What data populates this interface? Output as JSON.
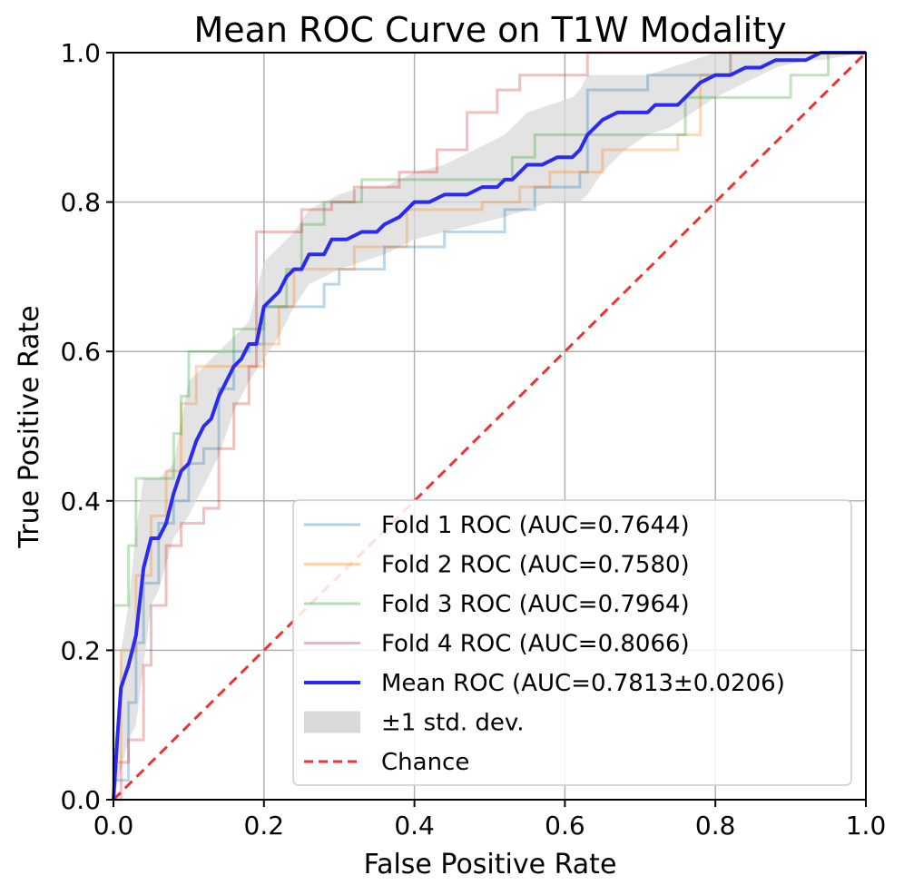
{
  "chart_data": {
    "type": "line",
    "title": "Mean ROC Curve on T1W Modality",
    "xlabel": "False Positive Rate",
    "ylabel": "True Positive Rate",
    "xlim": [
      0,
      1
    ],
    "ylim": [
      0,
      1
    ],
    "grid": true,
    "legend_position": "bottom-right",
    "x_ticks": [
      "0.0",
      "0.2",
      "0.4",
      "0.6",
      "0.8",
      "1.0"
    ],
    "y_ticks": [
      "0.0",
      "0.2",
      "0.4",
      "0.6",
      "0.8",
      "1.0"
    ],
    "colors": {
      "fold1": "#1f77b4",
      "fold2": "#ff7f0e",
      "fold3": "#2ca02c",
      "fold4": "#d62728",
      "mean": "#2a2af0",
      "std_band": "#d9d9d9",
      "chance": "#f03232",
      "grid": "#b0b0b0"
    },
    "series": [
      {
        "name": "Fold 1 ROC (AUC=0.7644)",
        "auc": 0.7644,
        "points": [
          [
            0,
            0
          ],
          [
            0,
            0.026
          ],
          [
            0.02,
            0.026
          ],
          [
            0.02,
            0.13
          ],
          [
            0.03,
            0.13
          ],
          [
            0.03,
            0.21
          ],
          [
            0.04,
            0.21
          ],
          [
            0.04,
            0.29
          ],
          [
            0.06,
            0.29
          ],
          [
            0.06,
            0.37
          ],
          [
            0.08,
            0.37
          ],
          [
            0.08,
            0.4
          ],
          [
            0.1,
            0.4
          ],
          [
            0.1,
            0.45
          ],
          [
            0.12,
            0.45
          ],
          [
            0.12,
            0.47
          ],
          [
            0.14,
            0.47
          ],
          [
            0.14,
            0.55
          ],
          [
            0.16,
            0.55
          ],
          [
            0.16,
            0.6
          ],
          [
            0.18,
            0.6
          ],
          [
            0.18,
            0.61
          ],
          [
            0.2,
            0.61
          ],
          [
            0.2,
            0.66
          ],
          [
            0.28,
            0.66
          ],
          [
            0.28,
            0.69
          ],
          [
            0.3,
            0.69
          ],
          [
            0.3,
            0.71
          ],
          [
            0.36,
            0.71
          ],
          [
            0.36,
            0.74
          ],
          [
            0.44,
            0.74
          ],
          [
            0.44,
            0.76
          ],
          [
            0.52,
            0.76
          ],
          [
            0.52,
            0.79
          ],
          [
            0.56,
            0.79
          ],
          [
            0.56,
            0.82
          ],
          [
            0.62,
            0.82
          ],
          [
            0.62,
            0.84
          ],
          [
            0.63,
            0.84
          ],
          [
            0.63,
            0.95
          ],
          [
            0.71,
            0.95
          ],
          [
            0.71,
            0.97
          ],
          [
            0.82,
            0.97
          ],
          [
            0.82,
            1.0
          ],
          [
            1.0,
            1.0
          ]
        ]
      },
      {
        "name": "Fold 2 ROC (AUC=0.7580)",
        "auc": 0.758,
        "points": [
          [
            0,
            0
          ],
          [
            0,
            0.05
          ],
          [
            0.01,
            0.05
          ],
          [
            0.01,
            0.2
          ],
          [
            0.03,
            0.2
          ],
          [
            0.03,
            0.3
          ],
          [
            0.05,
            0.3
          ],
          [
            0.05,
            0.38
          ],
          [
            0.07,
            0.38
          ],
          [
            0.07,
            0.44
          ],
          [
            0.09,
            0.44
          ],
          [
            0.09,
            0.53
          ],
          [
            0.11,
            0.53
          ],
          [
            0.11,
            0.58
          ],
          [
            0.18,
            0.58
          ],
          [
            0.18,
            0.58
          ],
          [
            0.2,
            0.58
          ],
          [
            0.2,
            0.61
          ],
          [
            0.22,
            0.61
          ],
          [
            0.22,
            0.66
          ],
          [
            0.24,
            0.66
          ],
          [
            0.24,
            0.71
          ],
          [
            0.32,
            0.71
          ],
          [
            0.32,
            0.74
          ],
          [
            0.39,
            0.74
          ],
          [
            0.39,
            0.79
          ],
          [
            0.49,
            0.79
          ],
          [
            0.49,
            0.8
          ],
          [
            0.54,
            0.8
          ],
          [
            0.54,
            0.82
          ],
          [
            0.58,
            0.82
          ],
          [
            0.58,
            0.84
          ],
          [
            0.65,
            0.84
          ],
          [
            0.65,
            0.87
          ],
          [
            0.75,
            0.87
          ],
          [
            0.75,
            0.89
          ],
          [
            0.78,
            0.89
          ],
          [
            0.78,
            0.97
          ],
          [
            0.82,
            0.97
          ],
          [
            0.82,
            1.0
          ],
          [
            1.0,
            1.0
          ]
        ]
      },
      {
        "name": "Fold 3 ROC (AUC=0.7964)",
        "auc": 0.7964,
        "points": [
          [
            0,
            0
          ],
          [
            0,
            0.26
          ],
          [
            0.02,
            0.26
          ],
          [
            0.02,
            0.34
          ],
          [
            0.03,
            0.34
          ],
          [
            0.03,
            0.43
          ],
          [
            0.08,
            0.43
          ],
          [
            0.08,
            0.49
          ],
          [
            0.09,
            0.49
          ],
          [
            0.09,
            0.54
          ],
          [
            0.1,
            0.54
          ],
          [
            0.1,
            0.6
          ],
          [
            0.16,
            0.6
          ],
          [
            0.16,
            0.63
          ],
          [
            0.18,
            0.63
          ],
          [
            0.18,
            0.63
          ],
          [
            0.2,
            0.63
          ],
          [
            0.2,
            0.66
          ],
          [
            0.23,
            0.66
          ],
          [
            0.23,
            0.71
          ],
          [
            0.25,
            0.71
          ],
          [
            0.25,
            0.77
          ],
          [
            0.28,
            0.77
          ],
          [
            0.28,
            0.8
          ],
          [
            0.33,
            0.8
          ],
          [
            0.33,
            0.83
          ],
          [
            0.53,
            0.83
          ],
          [
            0.53,
            0.86
          ],
          [
            0.56,
            0.86
          ],
          [
            0.56,
            0.89
          ],
          [
            0.76,
            0.89
          ],
          [
            0.76,
            0.94
          ],
          [
            0.9,
            0.94
          ],
          [
            0.9,
            0.97
          ],
          [
            0.95,
            0.97
          ],
          [
            0.95,
            1.0
          ],
          [
            1.0,
            1.0
          ]
        ]
      },
      {
        "name": "Fold 4 ROC (AUC=0.8066)",
        "auc": 0.8066,
        "points": [
          [
            0,
            0
          ],
          [
            0.01,
            0
          ],
          [
            0.01,
            0.05
          ],
          [
            0.02,
            0.05
          ],
          [
            0.02,
            0.08
          ],
          [
            0.04,
            0.08
          ],
          [
            0.04,
            0.18
          ],
          [
            0.05,
            0.18
          ],
          [
            0.05,
            0.26
          ],
          [
            0.07,
            0.26
          ],
          [
            0.07,
            0.34
          ],
          [
            0.09,
            0.34
          ],
          [
            0.09,
            0.37
          ],
          [
            0.12,
            0.37
          ],
          [
            0.12,
            0.39
          ],
          [
            0.14,
            0.39
          ],
          [
            0.14,
            0.47
          ],
          [
            0.16,
            0.47
          ],
          [
            0.16,
            0.53
          ],
          [
            0.18,
            0.53
          ],
          [
            0.18,
            0.58
          ],
          [
            0.19,
            0.58
          ],
          [
            0.19,
            0.76
          ],
          [
            0.25,
            0.76
          ],
          [
            0.25,
            0.79
          ],
          [
            0.29,
            0.79
          ],
          [
            0.29,
            0.8
          ],
          [
            0.32,
            0.8
          ],
          [
            0.32,
            0.82
          ],
          [
            0.38,
            0.82
          ],
          [
            0.38,
            0.84
          ],
          [
            0.43,
            0.84
          ],
          [
            0.43,
            0.87
          ],
          [
            0.47,
            0.87
          ],
          [
            0.47,
            0.92
          ],
          [
            0.51,
            0.92
          ],
          [
            0.51,
            0.95
          ],
          [
            0.54,
            0.95
          ],
          [
            0.54,
            0.97
          ],
          [
            0.63,
            0.97
          ],
          [
            0.63,
            1.0
          ],
          [
            1.0,
            1.0
          ]
        ]
      },
      {
        "name": "Mean ROC (AUC=0.7813±0.0206)",
        "auc": 0.7813,
        "auc_std": 0.0206,
        "points": [
          [
            0,
            0
          ],
          [
            0.005,
            0.08
          ],
          [
            0.01,
            0.15
          ],
          [
            0.02,
            0.18
          ],
          [
            0.03,
            0.22
          ],
          [
            0.04,
            0.31
          ],
          [
            0.05,
            0.35
          ],
          [
            0.06,
            0.35
          ],
          [
            0.07,
            0.37
          ],
          [
            0.08,
            0.41
          ],
          [
            0.09,
            0.44
          ],
          [
            0.1,
            0.45
          ],
          [
            0.11,
            0.48
          ],
          [
            0.12,
            0.5
          ],
          [
            0.13,
            0.51
          ],
          [
            0.14,
            0.54
          ],
          [
            0.15,
            0.56
          ],
          [
            0.16,
            0.58
          ],
          [
            0.17,
            0.59
          ],
          [
            0.18,
            0.61
          ],
          [
            0.19,
            0.61
          ],
          [
            0.2,
            0.66
          ],
          [
            0.21,
            0.67
          ],
          [
            0.22,
            0.68
          ],
          [
            0.23,
            0.7
          ],
          [
            0.24,
            0.71
          ],
          [
            0.25,
            0.71
          ],
          [
            0.26,
            0.73
          ],
          [
            0.28,
            0.73
          ],
          [
            0.29,
            0.75
          ],
          [
            0.31,
            0.75
          ],
          [
            0.33,
            0.76
          ],
          [
            0.35,
            0.76
          ],
          [
            0.36,
            0.77
          ],
          [
            0.38,
            0.78
          ],
          [
            0.39,
            0.79
          ],
          [
            0.4,
            0.8
          ],
          [
            0.42,
            0.8
          ],
          [
            0.44,
            0.81
          ],
          [
            0.47,
            0.81
          ],
          [
            0.49,
            0.82
          ],
          [
            0.51,
            0.82
          ],
          [
            0.52,
            0.83
          ],
          [
            0.53,
            0.83
          ],
          [
            0.54,
            0.84
          ],
          [
            0.55,
            0.85
          ],
          [
            0.57,
            0.85
          ],
          [
            0.59,
            0.86
          ],
          [
            0.61,
            0.86
          ],
          [
            0.62,
            0.87
          ],
          [
            0.63,
            0.89
          ],
          [
            0.64,
            0.9
          ],
          [
            0.65,
            0.91
          ],
          [
            0.67,
            0.92
          ],
          [
            0.69,
            0.92
          ],
          [
            0.71,
            0.92
          ],
          [
            0.72,
            0.93
          ],
          [
            0.73,
            0.93
          ],
          [
            0.75,
            0.93
          ],
          [
            0.76,
            0.94
          ],
          [
            0.77,
            0.95
          ],
          [
            0.78,
            0.96
          ],
          [
            0.8,
            0.97
          ],
          [
            0.82,
            0.97
          ],
          [
            0.84,
            0.98
          ],
          [
            0.86,
            0.98
          ],
          [
            0.88,
            0.99
          ],
          [
            0.9,
            0.99
          ],
          [
            0.92,
            0.99
          ],
          [
            0.94,
            1.0
          ],
          [
            1.0,
            1.0
          ]
        ]
      }
    ],
    "std_band": {
      "name": "±1 std. dev.",
      "x": [
        0,
        0.01,
        0.02,
        0.03,
        0.04,
        0.05,
        0.06,
        0.08,
        0.1,
        0.12,
        0.14,
        0.16,
        0.18,
        0.2,
        0.22,
        0.24,
        0.26,
        0.28,
        0.3,
        0.33,
        0.36,
        0.4,
        0.44,
        0.48,
        0.52,
        0.55,
        0.58,
        0.61,
        0.62,
        0.63,
        0.65,
        0.68,
        0.71,
        0.74,
        0.77,
        0.8,
        0.84,
        0.88,
        0.92,
        0.94,
        1.0
      ],
      "upper": [
        0.01,
        0.2,
        0.26,
        0.36,
        0.43,
        0.43,
        0.43,
        0.45,
        0.56,
        0.58,
        0.6,
        0.62,
        0.64,
        0.72,
        0.74,
        0.76,
        0.79,
        0.8,
        0.81,
        0.82,
        0.82,
        0.84,
        0.85,
        0.87,
        0.89,
        0.92,
        0.93,
        0.94,
        0.95,
        0.97,
        0.97,
        0.97,
        0.97,
        0.98,
        0.99,
        1.0,
        1.0,
        1.0,
        1.0,
        1.0,
        1.0
      ],
      "lower": [
        0,
        0.04,
        0.08,
        0.1,
        0.18,
        0.26,
        0.28,
        0.35,
        0.38,
        0.42,
        0.46,
        0.52,
        0.56,
        0.59,
        0.62,
        0.66,
        0.69,
        0.7,
        0.71,
        0.72,
        0.73,
        0.75,
        0.76,
        0.77,
        0.78,
        0.79,
        0.8,
        0.8,
        0.8,
        0.81,
        0.84,
        0.87,
        0.89,
        0.9,
        0.92,
        0.94,
        0.96,
        0.98,
        0.99,
        0.99,
        1.0
      ]
    },
    "chance": {
      "name": "Chance",
      "points": [
        [
          0,
          0
        ],
        [
          1,
          1
        ]
      ]
    }
  }
}
